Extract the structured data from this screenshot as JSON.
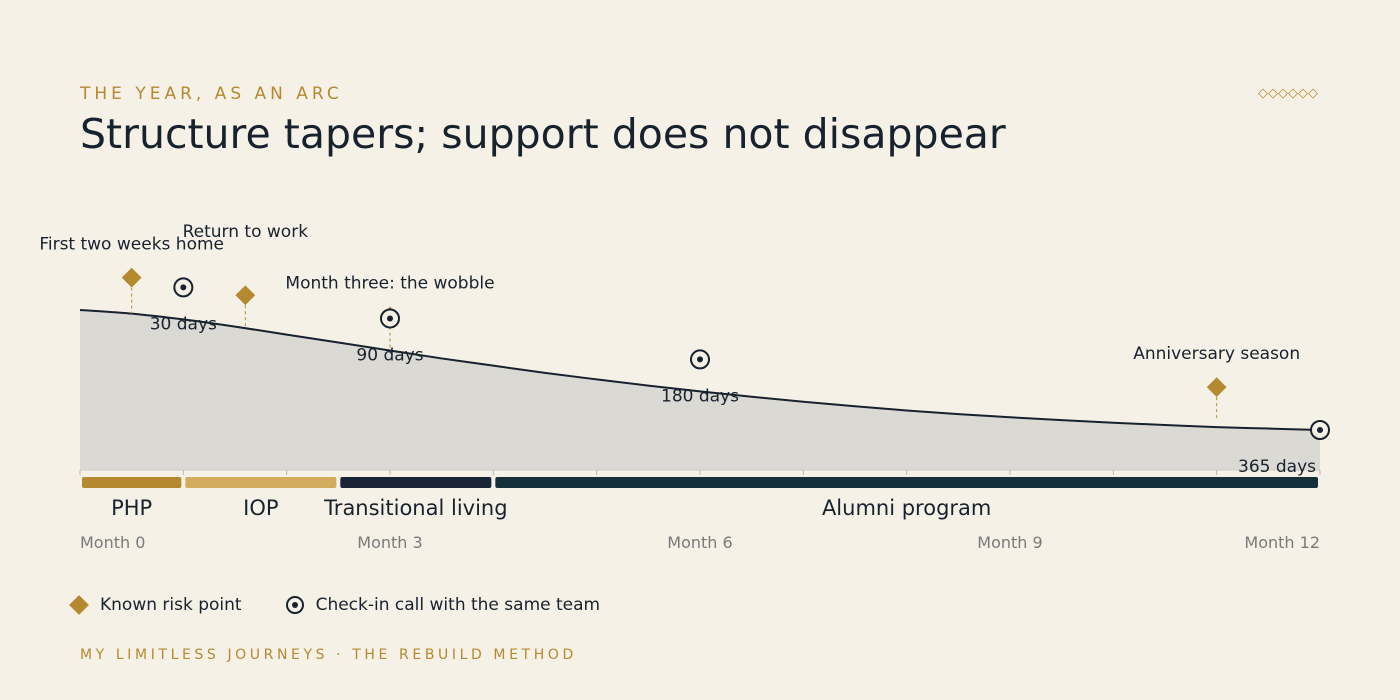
{
  "header": {
    "eyebrow": "THE YEAR, AS AN ARC",
    "title": "Structure tapers; support does not disappear",
    "ornament": "◇◇◇◇◇◇"
  },
  "colors": {
    "background": "#f6f1e7",
    "gold": "#b5892f",
    "light_gold": "#d2ab5c",
    "navy": "#1a2438",
    "teal_dark": "#16303a",
    "ink": "#16222e",
    "area_fill": "#dbd9d3",
    "muted": "#7a7a7a"
  },
  "chart_data": {
    "type": "area",
    "x_unit": "month",
    "xlim": [
      0,
      12
    ],
    "x_ticks": [
      {
        "x": 0,
        "label": "Month 0"
      },
      {
        "x": 3,
        "label": "Month 3"
      },
      {
        "x": 6,
        "label": "Month 6"
      },
      {
        "x": 9,
        "label": "Month 9"
      },
      {
        "x": 12,
        "label": "Month 12"
      }
    ],
    "curve": {
      "label": "structure",
      "x": [
        0,
        0.5,
        1,
        1.5,
        2,
        2.5,
        3,
        3.5,
        4,
        4.5,
        5,
        5.5,
        6,
        6.5,
        7,
        7.5,
        8,
        8.5,
        9,
        9.5,
        10,
        10.5,
        11,
        11.5,
        12
      ],
      "y": [
        1.0,
        0.975,
        0.935,
        0.885,
        0.83,
        0.775,
        0.72,
        0.665,
        0.615,
        0.565,
        0.52,
        0.477,
        0.437,
        0.4,
        0.365,
        0.334,
        0.305,
        0.28,
        0.258,
        0.238,
        0.22,
        0.205,
        0.19,
        0.18,
        0.17
      ]
    },
    "phases": [
      {
        "label": "PHP",
        "start": 0,
        "end": 1,
        "color": "#b5892f"
      },
      {
        "label": "IOP",
        "start": 1,
        "end": 2.5,
        "color": "#d2ab5c"
      },
      {
        "label": "Transitional living",
        "start": 2.5,
        "end": 4,
        "color": "#1a2438"
      },
      {
        "label": "Alumni program",
        "start": 4,
        "end": 12,
        "color": "#16303a"
      }
    ],
    "risk_points": [
      {
        "x": 0.5,
        "label": "First two weeks home"
      },
      {
        "x": 1.6,
        "label": "Return to work"
      },
      {
        "x": 3,
        "label": "Month three: the wobble"
      },
      {
        "x": 11,
        "label": "Anniversary season"
      }
    ],
    "check_ins": [
      {
        "x": 1,
        "label": "30 days"
      },
      {
        "x": 3,
        "label": "90 days"
      },
      {
        "x": 6,
        "label": "180 days"
      },
      {
        "x": 12,
        "label": "365 days"
      }
    ]
  },
  "legend": {
    "risk": "Known risk point",
    "checkin": "Check-in call with the same team"
  },
  "footer": "MY LIMITLESS JOURNEYS · THE REBUILD METHOD"
}
